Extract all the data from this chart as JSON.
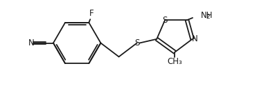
{
  "bg_color": "#ffffff",
  "line_color": "#1a1a1a",
  "text_color": "#1a1a1a",
  "lw": 1.3,
  "fs": 8.5,
  "sfs": 6.5,
  "figsize": [
    3.84,
    1.25
  ],
  "dpi": 100,
  "xlim": [
    0.0,
    7.6
  ],
  "ylim": [
    -0.2,
    2.4
  ]
}
